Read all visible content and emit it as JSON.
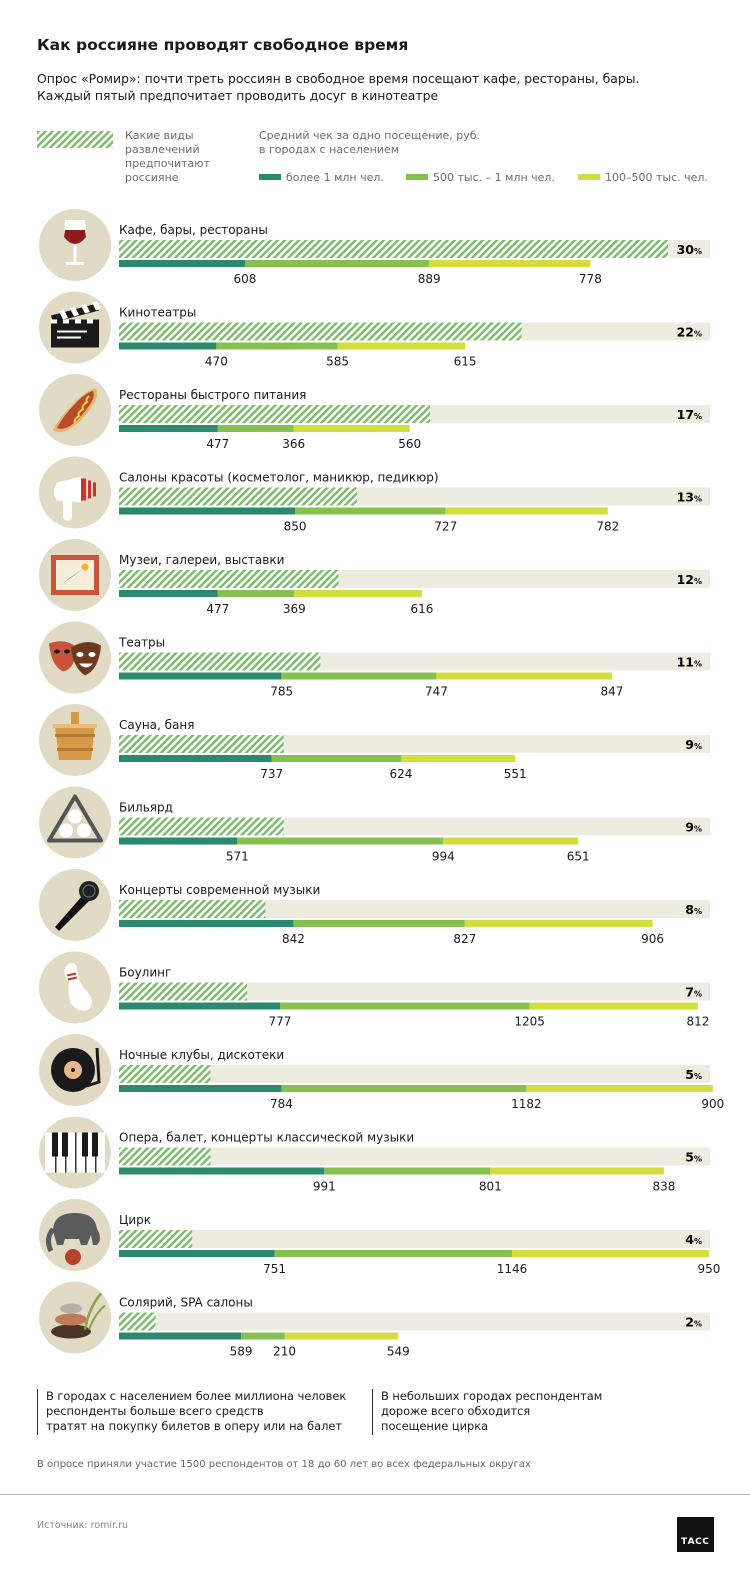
{
  "header": {
    "title": "Как россияне проводят свободное время",
    "subtitle_line1": "Опрос «Ромир»: почти треть россиян в свободное время посещают кафе, рестораны, бары.",
    "subtitle_line2": "Каждый пятый предпочитает проводить досуг в кинотеатре"
  },
  "legend": {
    "hatch_label": "Какие виды развлечений предпочитают россияне",
    "avg_title_line1": "Средний чек за одно посещение, руб.",
    "avg_title_line2": "в городах с населением",
    "series": [
      {
        "label": "более 1 млн чел.",
        "color": "#2b8a6e"
      },
      {
        "label": "500 тыс. – 1 млн чел.",
        "color": "#86c14f"
      },
      {
        "label": "100–500 тыс. чел.",
        "color": "#d3de3e"
      }
    ],
    "hatch_color": "#7dbd6b",
    "track_color": "#eeece1",
    "icon_bg_color": "#e1dbc5"
  },
  "chart_data": {
    "type": "bar",
    "categories": [
      {
        "label": "Кафе, бары, рестораны",
        "icon": "wine-glass-icon"
      },
      {
        "label": "Кинотеатры",
        "icon": "clapperboard-icon"
      },
      {
        "label": "Рестораны быстрого питания",
        "icon": "hotdog-icon"
      },
      {
        "label": "Салоны красоты (косметолог, маникюр, педикюр)",
        "icon": "hair-dryer-icon"
      },
      {
        "label": "Музеи, галереи, выставки",
        "icon": "painting-icon"
      },
      {
        "label": "Театры",
        "icon": "theatre-masks-icon"
      },
      {
        "label": "Сауна, баня",
        "icon": "sauna-bucket-icon"
      },
      {
        "label": "Бильярд",
        "icon": "billiard-rack-icon"
      },
      {
        "label": "Концерты современной музыки",
        "icon": "microphone-icon"
      },
      {
        "label": "Боулинг",
        "icon": "bowling-pin-icon"
      },
      {
        "label": "Ночные клубы, дискотеки",
        "icon": "vinyl-record-icon"
      },
      {
        "label": "Опера, балет, концерты классической музыки",
        "icon": "piano-keys-icon"
      },
      {
        "label": "Цирк",
        "icon": "circus-elephant-icon"
      },
      {
        "label": "Солярий, SPA салоны",
        "icon": "spa-stones-icon"
      }
    ],
    "share_percent": [
      30,
      22,
      17,
      13,
      12,
      11,
      9,
      9,
      8,
      7,
      5,
      5,
      4,
      2
    ],
    "percent_sign": "%",
    "series": [
      {
        "name": "более 1 млн чел.",
        "values": [
          608,
          470,
          477,
          850,
          477,
          785,
          737,
          571,
          842,
          777,
          784,
          991,
          751,
          589
        ]
      },
      {
        "name": "500 тыс. – 1 млн чел.",
        "values": [
          889,
          585,
          366,
          727,
          369,
          747,
          624,
          994,
          827,
          1205,
          1182,
          801,
          1146,
          210
        ]
      },
      {
        "name": "100–500 тыс. чел.",
        "values": [
          778,
          615,
          560,
          782,
          616,
          847,
          551,
          651,
          906,
          812,
          900,
          838,
          950,
          549
        ]
      }
    ]
  },
  "notes": {
    "left_line1": "В городах с населением более миллиона человек",
    "left_line2": "респонденты больше всего средств",
    "left_line3": "тратят на покупку билетов в оперу или на балет",
    "right_line1": "В небольших городах респондентам",
    "right_line2": "дороже всего обходится",
    "right_line3": "посещение цирка"
  },
  "footnote": "В опросе приняли участие 1500 респондентов от 18 до 60 лет во всех федеральных округах",
  "source": "Источник: romir.ru",
  "logo_text": "ТАСС"
}
